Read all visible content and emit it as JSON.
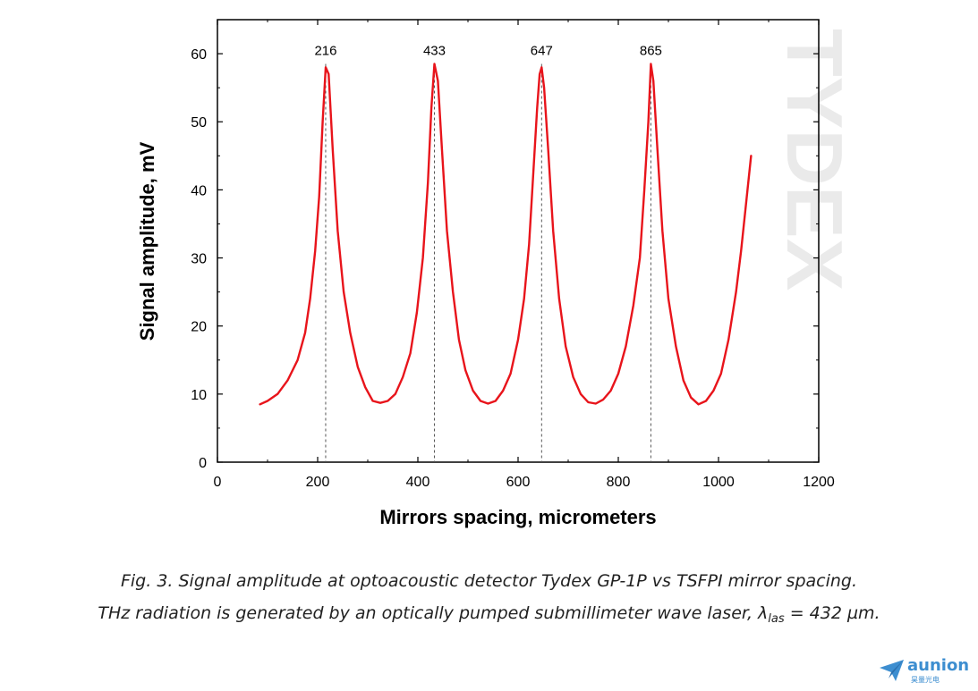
{
  "chart_data": {
    "type": "line",
    "title": "",
    "xlabel": "Mirrors spacing, micrometers",
    "ylabel": "Signal amplitude, mV",
    "xlim": [
      0,
      1200
    ],
    "ylim": [
      0,
      65
    ],
    "xticks": [
      "0",
      "200",
      "400",
      "600",
      "800",
      "1000",
      "1200"
    ],
    "yticks": [
      "0",
      "10",
      "20",
      "30",
      "40",
      "50",
      "60"
    ],
    "grid": false,
    "legend": "none",
    "line_color": "#e8141b",
    "peak_labels": [
      "216",
      "433",
      "647",
      "865"
    ],
    "peak_x": [
      216,
      433,
      647,
      865
    ],
    "series": [
      {
        "x": [
          85,
          100,
          120,
          140,
          160,
          175,
          185,
          195,
          203,
          210,
          216,
          222,
          230,
          240,
          252,
          265,
          280,
          295,
          310,
          325,
          340,
          355,
          370,
          385,
          398,
          410,
          420,
          427,
          433,
          440,
          448,
          458,
          470,
          482,
          495,
          510,
          525,
          540,
          555,
          570,
          585,
          600,
          612,
          622,
          630,
          638,
          643,
          647,
          652,
          660,
          670,
          682,
          695,
          710,
          725,
          740,
          755,
          770,
          785,
          800,
          815,
          830,
          843,
          852,
          860,
          865,
          870,
          878,
          888,
          900,
          915,
          930,
          945,
          960,
          975,
          990,
          1005,
          1020,
          1035,
          1045,
          1055,
          1065
        ],
        "y": [
          8.5,
          9,
          10,
          12,
          15,
          19,
          24,
          31,
          39,
          50,
          58,
          57,
          46,
          34,
          25,
          19,
          14,
          11,
          9,
          8.7,
          9,
          10,
          12.5,
          16,
          22,
          30,
          41,
          52,
          58.5,
          56,
          46,
          34,
          25,
          18,
          13.5,
          10.5,
          9,
          8.6,
          9,
          10.5,
          13,
          18,
          24,
          32,
          42,
          52,
          57,
          58,
          55,
          46,
          34,
          24,
          17,
          12.5,
          10,
          8.8,
          8.6,
          9.2,
          10.5,
          13,
          17,
          23,
          30,
          40,
          50,
          58.5,
          56,
          46,
          34,
          24,
          17,
          12,
          9.5,
          8.5,
          9,
          10.5,
          13,
          18,
          25,
          31,
          38,
          45
        ]
      }
    ],
    "caption_line1": "Fig.  3. Signal amplitude at optoacoustic detector Tydex GP-1P vs TSFPI mirror spacing.",
    "caption_line2_pre": "THz radiation is generated by an optically pumped submillimeter wave laser, λ",
    "caption_line2_sub": "las",
    "caption_line2_post": " = 432 µm."
  },
  "logo": {
    "name": "aunion",
    "subtitle": "昊量光电"
  }
}
